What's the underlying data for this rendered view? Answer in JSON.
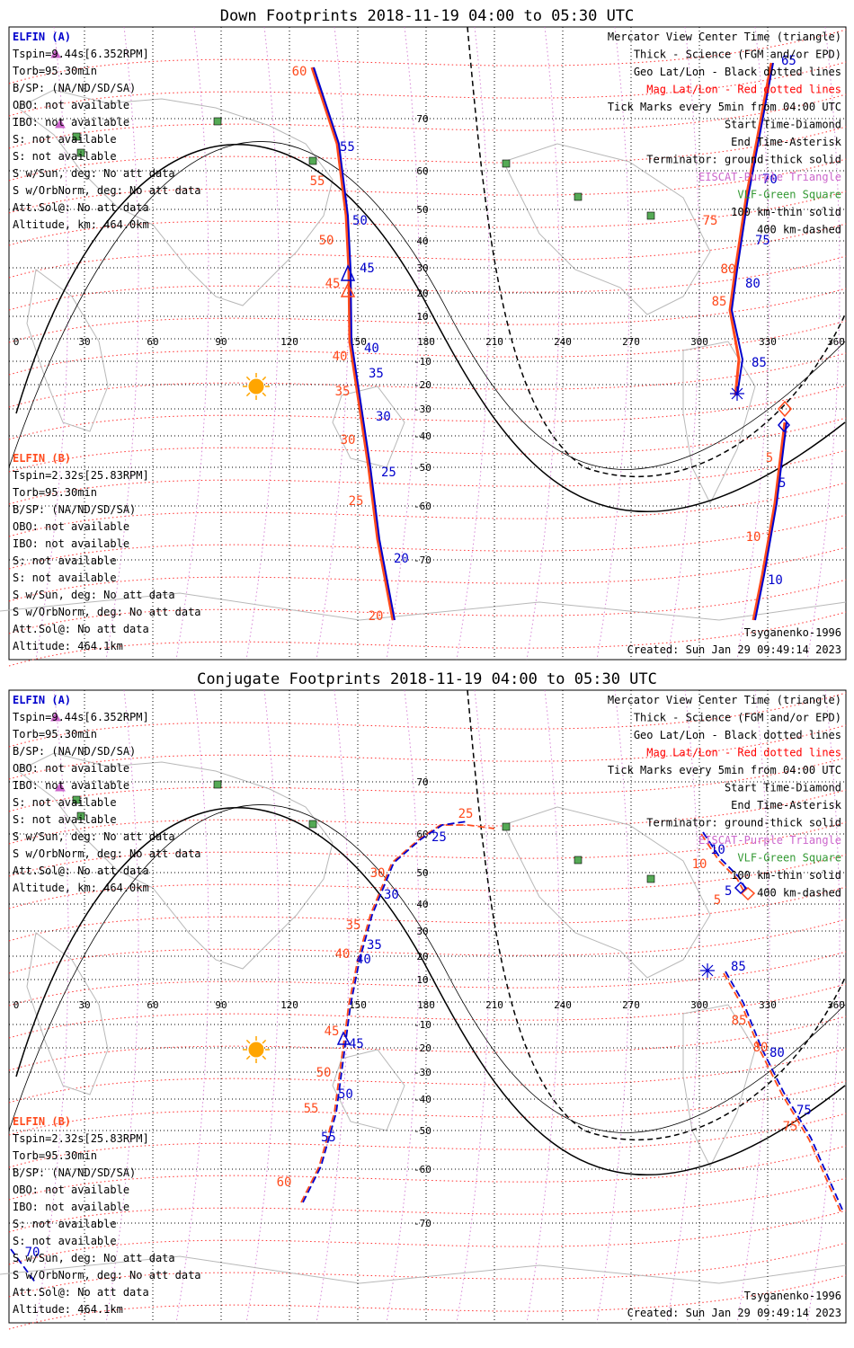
{
  "panels": [
    {
      "id": "down",
      "title": "Down Footprints 2018-11-19 04:00 to 05:30 UTC",
      "elfin_a": {
        "header": "ELFIN (A)",
        "lines": [
          "Tspin=9.44s[6.352RPM]",
          "Torb=95.30min",
          "B/SP: (NA/ND/SD/SA)",
          "OBO: not available",
          "IBO: not available",
          "S: not available",
          "S: not available",
          "S w/Sun, deg: No att data",
          "S w/OrbNorm, deg: No att data",
          "Att.Sol@: No att data",
          "Altitude, km: 464.0km"
        ]
      },
      "elfin_b": {
        "header": "ELFIN (B)",
        "lines": [
          "Tspin=2.32s[25.83RPM]",
          "Torb=95.30min",
          "B/SP: (NA/ND/SD/SA)",
          "OBO: not available",
          "IBO: not available",
          "S: not available",
          "S: not available",
          "S w/Sun, deg: No att data",
          "S w/OrbNorm, deg: No att data",
          "Att.Sol@: No att data",
          "Altitude: 464.1km"
        ]
      },
      "tracks": {
        "track1_blue_labels": [
          "55",
          "50",
          "45",
          "40",
          "35",
          "30",
          "25",
          "20"
        ],
        "track1_red_labels": [
          "60",
          "55",
          "50",
          "45",
          "40",
          "35",
          "30",
          "25",
          "20"
        ],
        "track2_blue_labels": [
          "65",
          "70",
          "75",
          "80",
          "85",
          "5",
          "10"
        ],
        "track2_red_labels": [
          "75",
          "80",
          "85",
          "5",
          "10"
        ]
      }
    },
    {
      "id": "conjugate",
      "title": "Conjugate Footprints 2018-11-19 04:00 to 05:30 UTC",
      "elfin_a": {
        "header": "ELFIN (A)",
        "lines": [
          "Tspin=9.44s[6.352RPM]",
          "Torb=95.30min",
          "B/SP: (NA/ND/SD/SA)",
          "OBO: not available",
          "IBO: not available",
          "S: not available",
          "S: not available",
          "S w/Sun, deg: No att data",
          "S w/OrbNorm, deg: No att data",
          "Att.Sol@: No att data",
          "Altitude, km: 464.0km"
        ]
      },
      "elfin_b": {
        "header": "ELFIN (B)",
        "lines": [
          "Tspin=2.32s[25.83RPM]",
          "Torb=95.30min",
          "B/SP: (NA/ND/SD/SA)",
          "OBO: not available",
          "IBO: not available",
          "S: not available",
          "S: not available",
          "S w/Sun, deg: No att data",
          "S w/OrbNorm, deg: No att data",
          "Att.Sol@: No att data",
          "Altitude: 464.1km"
        ]
      },
      "tracks": {
        "track1_blue_labels": [
          "25",
          "30",
          "35",
          "40",
          "45",
          "50",
          "55"
        ],
        "track1_red_labels": [
          "25",
          "30",
          "35",
          "40",
          "45",
          "50",
          "55",
          "60"
        ],
        "track2_blue_labels": [
          "10",
          "5",
          "85",
          "80",
          "75"
        ],
        "track2_red_labels": [
          "10",
          "5",
          "85",
          "80",
          "75"
        ],
        "edge_blue_label": "70"
      }
    }
  ],
  "legend": [
    "Mercator View Center Time (triangle)",
    "Thick - Science (FGM and/or EPD)",
    "Geo Lat/Lon - Black dotted lines",
    "Mag Lat/Lon - Red dotted lines",
    "Tick Marks every 5min from 04:00 UTC",
    "Start Time-Diamond",
    "End Time-Asterisk",
    "Terminator: ground-thick solid",
    "EISCAT-Purple Triangle",
    "VLF-Green Square",
    "100 km-thin solid",
    "400 km-dashed"
  ],
  "model": "Tsyganenko-1996",
  "created": "Created: Sun Jan 29 09:49:14 2023",
  "lon_ticks": [
    "0",
    "30",
    "60",
    "90",
    "120",
    "150",
    "180",
    "210",
    "240",
    "270",
    "300",
    "330",
    "360"
  ],
  "lat_ticks": [
    "70",
    "60",
    "50",
    "40",
    "30",
    "20",
    "10",
    "-10",
    "-20",
    "-30",
    "-40",
    "-50",
    "-60",
    "-70"
  ],
  "colors": {
    "elfin_a": "#0000cc",
    "elfin_b": "#ff4a1c",
    "mag_grid": "#ff3030",
    "geo_grid": "#000000",
    "eiscat": "#cc66cc",
    "vlf": "#339933",
    "vlf_fill": "#55aa55",
    "sun": "#ffa500",
    "legend_mag": "#ff0000",
    "legend_eiscat": "#cc66cc",
    "legend_vlf": "#339933",
    "coast": "#b8b8b8"
  }
}
